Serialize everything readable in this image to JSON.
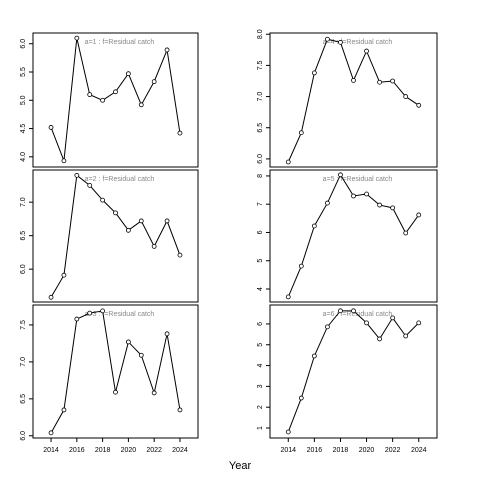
{
  "xlabel": "Year",
  "chart_data": [
    {
      "type": "line",
      "annotation": "a=1  :  f=Residual catch",
      "x": [
        2014,
        2015,
        2016,
        2017,
        2018,
        2019,
        2020,
        2021,
        2022,
        2023,
        2024
      ],
      "values": [
        4.52,
        3.93,
        6.1,
        5.1,
        5.0,
        5.15,
        5.47,
        4.92,
        5.33,
        5.89,
        4.42
      ],
      "color": "#000000",
      "xlim": [
        2012.6,
        2025.4
      ],
      "ylim": [
        3.82,
        6.19
      ],
      "yticks": [
        {
          "value": 4,
          "label": "4.0"
        },
        4.5,
        {
          "value": 5,
          "label": "5.0"
        },
        5.5,
        {
          "value": 6,
          "label": "6.0"
        }
      ]
    },
    {
      "type": "line",
      "annotation": "a=4  :  f=Residual catch",
      "x": [
        2014,
        2015,
        2016,
        2017,
        2018,
        2019,
        2020,
        2021,
        2022,
        2023,
        2024
      ],
      "values": [
        5.95,
        6.42,
        7.38,
        7.92,
        7.87,
        7.26,
        7.73,
        7.23,
        7.25,
        7.0,
        6.86
      ],
      "color": "#000000",
      "xlim": [
        2012.6,
        2025.4
      ],
      "ylim": [
        5.87,
        8.02
      ],
      "yticks": [
        {
          "value": 6,
          "label": "6.0"
        },
        6.5,
        {
          "value": 7,
          "label": "7.0"
        },
        7.5,
        {
          "value": 8,
          "label": "8.0"
        }
      ]
    },
    {
      "type": "line",
      "annotation": "a=2  :  f=Residual catch",
      "x": [
        2014,
        2015,
        2016,
        2017,
        2018,
        2019,
        2020,
        2021,
        2022,
        2023,
        2024
      ],
      "values": [
        5.58,
        5.91,
        7.4,
        7.25,
        7.03,
        6.84,
        6.58,
        6.72,
        6.34,
        6.72,
        6.21
      ],
      "color": "#000000",
      "xlim": [
        2012.6,
        2025.4
      ],
      "ylim": [
        5.51,
        7.48
      ],
      "yticks": [
        {
          "value": 6,
          "label": "6.0"
        },
        6.5,
        {
          "value": 7,
          "label": "7.0"
        }
      ]
    },
    {
      "type": "line",
      "annotation": "a=5  :  f=Residual catch",
      "x": [
        2014,
        2015,
        2016,
        2017,
        2018,
        2019,
        2020,
        2021,
        2022,
        2023,
        2024
      ],
      "values": [
        3.72,
        4.81,
        6.23,
        7.04,
        8.04,
        7.29,
        7.36,
        6.97,
        6.87,
        5.98,
        6.62
      ],
      "color": "#000000",
      "xlim": [
        2012.6,
        2025.4
      ],
      "ylim": [
        3.54,
        8.21
      ],
      "yticks": [
        4,
        5,
        6,
        7,
        8
      ]
    },
    {
      "type": "line",
      "annotation": "a=3  :  f=Residual catch",
      "x": [
        2014,
        2015,
        2016,
        2017,
        2018,
        2019,
        2020,
        2021,
        2022,
        2023,
        2024
      ],
      "values": [
        6.04,
        6.35,
        7.58,
        7.66,
        7.69,
        6.59,
        7.27,
        7.09,
        6.58,
        7.38,
        6.35
      ],
      "color": "#000000",
      "xlim": [
        2012.6,
        2025.4
      ],
      "ylim": [
        5.97,
        7.77
      ],
      "yticks": [
        {
          "value": 6,
          "label": "6.0"
        },
        6.5,
        {
          "value": 7,
          "label": "7.0"
        },
        7.5
      ],
      "xticks": [
        2014,
        2016,
        2018,
        2020,
        2022,
        2024
      ]
    },
    {
      "type": "line",
      "annotation": "a=6  :  f=Residual catch",
      "x": [
        2014,
        2015,
        2016,
        2017,
        2018,
        2019,
        2020,
        2021,
        2022,
        2023,
        2024
      ],
      "values": [
        0.81,
        2.44,
        4.46,
        5.86,
        6.63,
        6.63,
        6.05,
        5.28,
        6.29,
        5.42,
        6.05
      ],
      "color": "#000000",
      "xlim": [
        2012.6,
        2025.4
      ],
      "ylim": [
        0.52,
        6.91
      ],
      "yticks": [
        1,
        2,
        3,
        4,
        5,
        6
      ],
      "xticks": [
        2014,
        2016,
        2018,
        2020,
        2022,
        2024
      ]
    }
  ]
}
